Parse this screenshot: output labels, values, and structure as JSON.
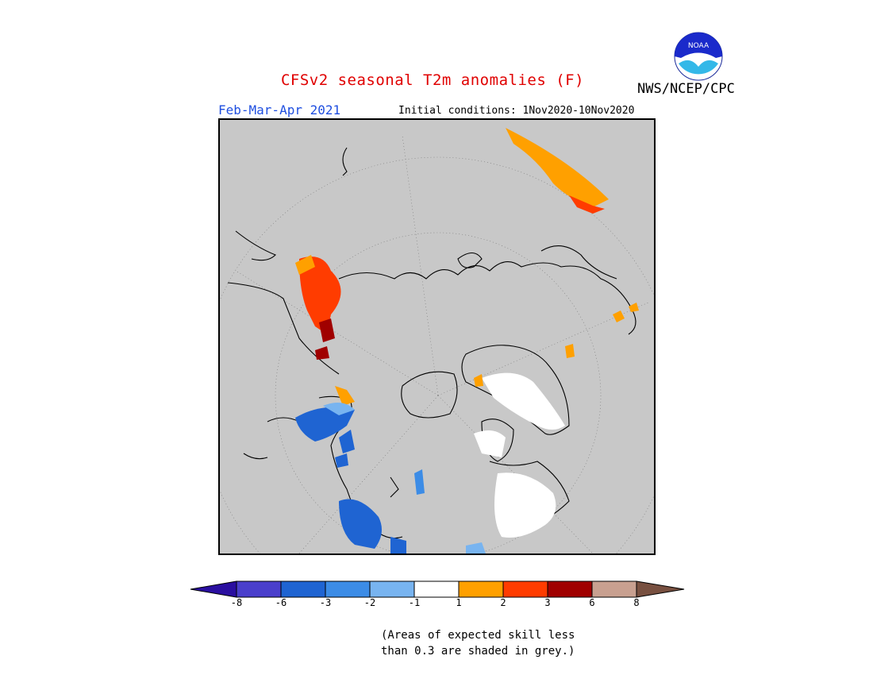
{
  "header": {
    "title": "CFSv2 seasonal T2m anomalies (F)",
    "title_color": "#e00000",
    "season": "Feb-Mar-Apr 2021",
    "season_color": "#1f4fe0",
    "initial_conditions": "Initial conditions: 1Nov2020-10Nov2020",
    "agency": "NWS/NCEP/CPC"
  },
  "logo": {
    "icon": "noaa-logo",
    "text": "NOAA"
  },
  "map": {
    "projection": "north-polar-stereographic",
    "background_color": "#c8c8c8",
    "region_icon": "northern-hemisphere-map"
  },
  "colorbar": {
    "tick_labels": [
      "-8",
      "-6",
      "-3",
      "-2",
      "-1",
      "1",
      "2",
      "3",
      "6",
      "8"
    ],
    "colors": [
      "#2a0fa0",
      "#4a3fcc",
      "#1f64d2",
      "#3c8ce6",
      "#78b4f0",
      "#ffffff",
      "#ffa000",
      "#ff3c00",
      "#a00000",
      "#c8a090",
      "#785040"
    ]
  },
  "footnote": {
    "line1": "(Areas of expected skill less",
    "line2": "than 0.3 are shaded in grey.)"
  }
}
